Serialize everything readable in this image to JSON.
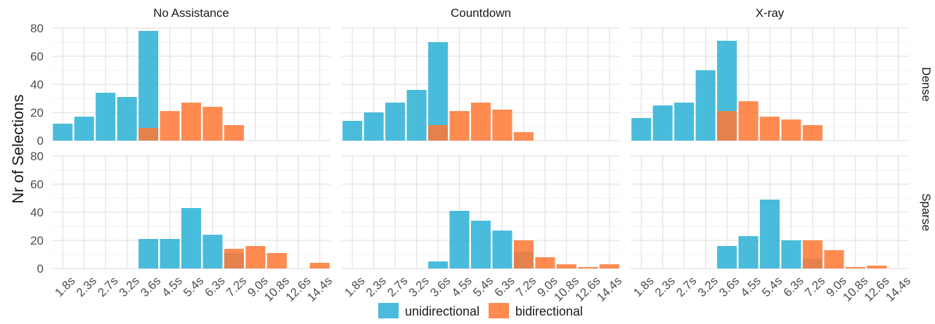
{
  "chart_data": {
    "type": "bar",
    "title": "",
    "xlabel": "",
    "ylabel": "Nr of Selections",
    "ylim": [
      0,
      80
    ],
    "yticks": [
      0,
      20,
      40,
      60,
      80
    ],
    "grid": true,
    "legend_position": "bottom",
    "categories": [
      "1.8s",
      "2.3s",
      "2.7s",
      "3.2s",
      "3.6s",
      "4.5s",
      "5.4s",
      "6.3s",
      "7.2s",
      "9.0s",
      "10.8s",
      "12.6s",
      "14.4s"
    ],
    "column_facets": [
      "No Assistance",
      "Countdown",
      "X-ray"
    ],
    "row_facets": [
      "Dense",
      "Sparse"
    ],
    "series": [
      {
        "name": "unidirectional",
        "color": "#29b0d5"
      },
      {
        "name": "bidirectional",
        "color": "#ff7733"
      }
    ],
    "panels": [
      {
        "column": "No Assistance",
        "row": "Dense",
        "unidirectional": [
          12,
          17,
          34,
          31,
          78,
          0,
          0,
          0,
          0,
          0,
          0,
          0,
          0
        ],
        "bidirectional": [
          0,
          0,
          0,
          0,
          9,
          21,
          27,
          24,
          11,
          0,
          0,
          0,
          0
        ]
      },
      {
        "column": "Countdown",
        "row": "Dense",
        "unidirectional": [
          14,
          20,
          27,
          36,
          70,
          0,
          0,
          0,
          0,
          0,
          0,
          0,
          0
        ],
        "bidirectional": [
          0,
          0,
          0,
          0,
          11,
          21,
          27,
          22,
          6,
          0,
          0,
          0,
          0
        ]
      },
      {
        "column": "X-ray",
        "row": "Dense",
        "unidirectional": [
          16,
          25,
          27,
          50,
          71,
          0,
          0,
          0,
          0,
          0,
          0,
          0,
          0
        ],
        "bidirectional": [
          0,
          0,
          0,
          0,
          21,
          28,
          17,
          15,
          11,
          0,
          0,
          0,
          0
        ]
      },
      {
        "column": "No Assistance",
        "row": "Sparse",
        "unidirectional": [
          0,
          0,
          0,
          0,
          21,
          21,
          43,
          24,
          11,
          0,
          0,
          0,
          0
        ],
        "bidirectional": [
          0,
          0,
          0,
          0,
          0,
          0,
          0,
          0,
          14,
          16,
          11,
          0,
          4
        ]
      },
      {
        "column": "Countdown",
        "row": "Sparse",
        "unidirectional": [
          0,
          0,
          0,
          0,
          5,
          41,
          34,
          27,
          12,
          0,
          0,
          0,
          0
        ],
        "bidirectional": [
          0,
          0,
          0,
          0,
          0,
          0,
          0,
          0,
          20,
          8,
          3,
          1,
          3
        ]
      },
      {
        "column": "X-ray",
        "row": "Sparse",
        "unidirectional": [
          0,
          0,
          0,
          0,
          16,
          23,
          49,
          20,
          7,
          0,
          0,
          0,
          0
        ],
        "bidirectional": [
          0,
          0,
          0,
          0,
          0,
          0,
          0,
          0,
          20,
          13,
          1,
          2,
          0
        ]
      }
    ]
  }
}
